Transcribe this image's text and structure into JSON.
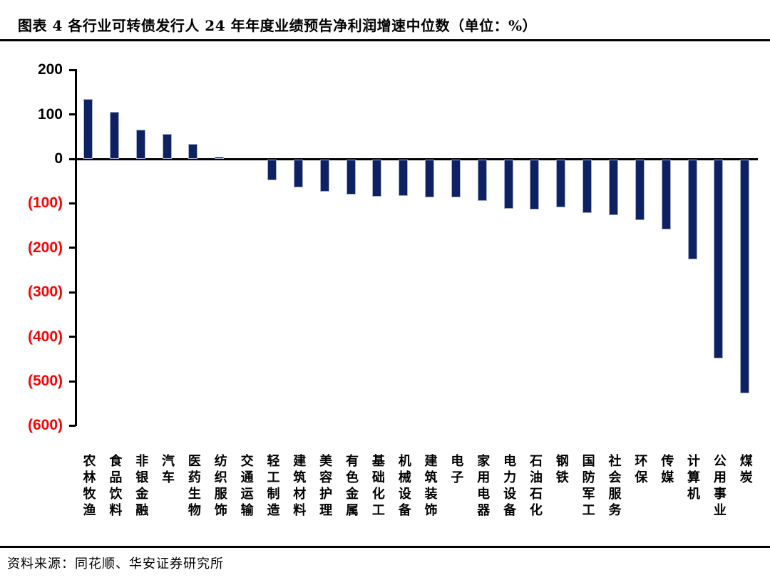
{
  "header": {
    "title": "图表 4  各行业可转债发行人 24 年年度业绩预告净利润增速中位数（单位：%）"
  },
  "footer": {
    "source": "资料来源：同花顺、华安证券研究所"
  },
  "chart_data": {
    "type": "bar",
    "title": "各行业可转债发行人24年年度业绩预告净利润增速中位数",
    "unit": "%",
    "categories": [
      "农林牧渔",
      "食品饮料",
      "非银金融",
      "汽车",
      "医药生物",
      "纺织服饰",
      "交通运输",
      "轻工制造",
      "建筑材料",
      "美容护理",
      "有色金属",
      "基础化工",
      "机械设备",
      "建筑装饰",
      "电子",
      "家用电器",
      "电力设备",
      "石油石化",
      "钢铁",
      "国防军工",
      "社会服务",
      "环保",
      "传媒",
      "计算机",
      "公用事业",
      "煤炭"
    ],
    "values": [
      135,
      105,
      65,
      56,
      34,
      5,
      0,
      -46,
      -63,
      -72,
      -78,
      -83,
      -81,
      -85,
      -85,
      -93,
      -110,
      -112,
      -108,
      -120,
      -125,
      -136,
      -157,
      -224,
      -447,
      -526
    ],
    "xlabel": "",
    "ylabel": "",
    "ylim": [
      -600,
      200
    ],
    "ytick_interval": 100,
    "ytick_labels": [
      "200",
      "100",
      "0",
      "(100)",
      "(200)",
      "(300)",
      "(400)",
      "(500)",
      "(600)"
    ],
    "grid": false,
    "legend": false,
    "colors": {
      "bar": "#0d2163",
      "bar_outline": "#a6aecd",
      "positive_tick_label": "#000000",
      "negative_tick_label": "#ff0000",
      "axis": "#000000"
    }
  }
}
